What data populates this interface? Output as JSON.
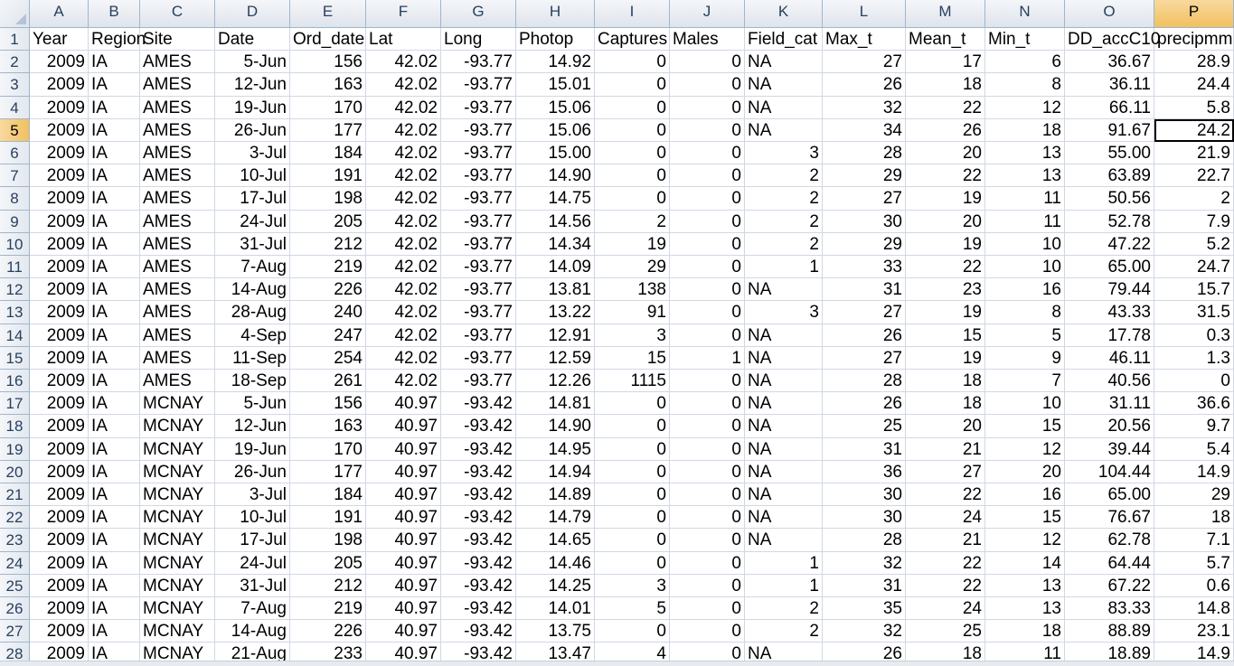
{
  "app": {
    "title": "Spreadsheet"
  },
  "selection": {
    "active_row": "5",
    "active_col": "P"
  },
  "columns": [
    "A",
    "B",
    "C",
    "D",
    "E",
    "F",
    "G",
    "H",
    "I",
    "J",
    "K",
    "L",
    "M",
    "N",
    "O",
    "P"
  ],
  "numeric_cols": [
    0,
    3,
    4,
    5,
    6,
    7,
    8,
    9,
    10,
    11,
    12,
    13,
    14,
    15
  ],
  "header_row": [
    "Year",
    "Region",
    "Site",
    "Date",
    "Ord_date",
    "Lat",
    "Long",
    "Photop",
    "Captures",
    "Males",
    "Field_cat",
    "Max_t",
    "Mean_t",
    "Min_t",
    "DD_accC10",
    "precipmm"
  ],
  "rows": [
    [
      "2009",
      "IA",
      "AMES",
      "5-Jun",
      "156",
      "42.02",
      "-93.77",
      "14.92",
      "0",
      "0",
      "NA",
      "27",
      "17",
      "6",
      "36.67",
      "28.9"
    ],
    [
      "2009",
      "IA",
      "AMES",
      "12-Jun",
      "163",
      "42.02",
      "-93.77",
      "15.01",
      "0",
      "0",
      "NA",
      "26",
      "18",
      "8",
      "36.11",
      "24.4"
    ],
    [
      "2009",
      "IA",
      "AMES",
      "19-Jun",
      "170",
      "42.02",
      "-93.77",
      "15.06",
      "0",
      "0",
      "NA",
      "32",
      "22",
      "12",
      "66.11",
      "5.8"
    ],
    [
      "2009",
      "IA",
      "AMES",
      "26-Jun",
      "177",
      "42.02",
      "-93.77",
      "15.06",
      "0",
      "0",
      "NA",
      "34",
      "26",
      "18",
      "91.67",
      "24.2"
    ],
    [
      "2009",
      "IA",
      "AMES",
      "3-Jul",
      "184",
      "42.02",
      "-93.77",
      "15.00",
      "0",
      "0",
      "3",
      "28",
      "20",
      "13",
      "55.00",
      "21.9"
    ],
    [
      "2009",
      "IA",
      "AMES",
      "10-Jul",
      "191",
      "42.02",
      "-93.77",
      "14.90",
      "0",
      "0",
      "2",
      "29",
      "22",
      "13",
      "63.89",
      "22.7"
    ],
    [
      "2009",
      "IA",
      "AMES",
      "17-Jul",
      "198",
      "42.02",
      "-93.77",
      "14.75",
      "0",
      "0",
      "2",
      "27",
      "19",
      "11",
      "50.56",
      "2"
    ],
    [
      "2009",
      "IA",
      "AMES",
      "24-Jul",
      "205",
      "42.02",
      "-93.77",
      "14.56",
      "2",
      "0",
      "2",
      "30",
      "20",
      "11",
      "52.78",
      "7.9"
    ],
    [
      "2009",
      "IA",
      "AMES",
      "31-Jul",
      "212",
      "42.02",
      "-93.77",
      "14.34",
      "19",
      "0",
      "2",
      "29",
      "19",
      "10",
      "47.22",
      "5.2"
    ],
    [
      "2009",
      "IA",
      "AMES",
      "7-Aug",
      "219",
      "42.02",
      "-93.77",
      "14.09",
      "29",
      "0",
      "1",
      "33",
      "22",
      "10",
      "65.00",
      "24.7"
    ],
    [
      "2009",
      "IA",
      "AMES",
      "14-Aug",
      "226",
      "42.02",
      "-93.77",
      "13.81",
      "138",
      "0",
      "NA",
      "31",
      "23",
      "16",
      "79.44",
      "15.7"
    ],
    [
      "2009",
      "IA",
      "AMES",
      "28-Aug",
      "240",
      "42.02",
      "-93.77",
      "13.22",
      "91",
      "0",
      "3",
      "27",
      "19",
      "8",
      "43.33",
      "31.5"
    ],
    [
      "2009",
      "IA",
      "AMES",
      "4-Sep",
      "247",
      "42.02",
      "-93.77",
      "12.91",
      "3",
      "0",
      "NA",
      "26",
      "15",
      "5",
      "17.78",
      "0.3"
    ],
    [
      "2009",
      "IA",
      "AMES",
      "11-Sep",
      "254",
      "42.02",
      "-93.77",
      "12.59",
      "15",
      "1",
      "NA",
      "27",
      "19",
      "9",
      "46.11",
      "1.3"
    ],
    [
      "2009",
      "IA",
      "AMES",
      "18-Sep",
      "261",
      "42.02",
      "-93.77",
      "12.26",
      "1115",
      "0",
      "NA",
      "28",
      "18",
      "7",
      "40.56",
      "0"
    ],
    [
      "2009",
      "IA",
      "MCNAY",
      "5-Jun",
      "156",
      "40.97",
      "-93.42",
      "14.81",
      "0",
      "0",
      "NA",
      "26",
      "18",
      "10",
      "31.11",
      "36.6"
    ],
    [
      "2009",
      "IA",
      "MCNAY",
      "12-Jun",
      "163",
      "40.97",
      "-93.42",
      "14.90",
      "0",
      "0",
      "NA",
      "25",
      "20",
      "15",
      "20.56",
      "9.7"
    ],
    [
      "2009",
      "IA",
      "MCNAY",
      "19-Jun",
      "170",
      "40.97",
      "-93.42",
      "14.95",
      "0",
      "0",
      "NA",
      "31",
      "21",
      "12",
      "39.44",
      "5.4"
    ],
    [
      "2009",
      "IA",
      "MCNAY",
      "26-Jun",
      "177",
      "40.97",
      "-93.42",
      "14.94",
      "0",
      "0",
      "NA",
      "36",
      "27",
      "20",
      "104.44",
      "14.9"
    ],
    [
      "2009",
      "IA",
      "MCNAY",
      "3-Jul",
      "184",
      "40.97",
      "-93.42",
      "14.89",
      "0",
      "0",
      "NA",
      "30",
      "22",
      "16",
      "65.00",
      "29"
    ],
    [
      "2009",
      "IA",
      "MCNAY",
      "10-Jul",
      "191",
      "40.97",
      "-93.42",
      "14.79",
      "0",
      "0",
      "NA",
      "30",
      "24",
      "15",
      "76.67",
      "18"
    ],
    [
      "2009",
      "IA",
      "MCNAY",
      "17-Jul",
      "198",
      "40.97",
      "-93.42",
      "14.65",
      "0",
      "0",
      "NA",
      "28",
      "21",
      "12",
      "62.78",
      "7.1"
    ],
    [
      "2009",
      "IA",
      "MCNAY",
      "24-Jul",
      "205",
      "40.97",
      "-93.42",
      "14.46",
      "0",
      "0",
      "1",
      "32",
      "22",
      "14",
      "64.44",
      "5.7"
    ],
    [
      "2009",
      "IA",
      "MCNAY",
      "31-Jul",
      "212",
      "40.97",
      "-93.42",
      "14.25",
      "3",
      "0",
      "1",
      "31",
      "22",
      "13",
      "67.22",
      "0.6"
    ],
    [
      "2009",
      "IA",
      "MCNAY",
      "7-Aug",
      "219",
      "40.97",
      "-93.42",
      "14.01",
      "5",
      "0",
      "2",
      "35",
      "24",
      "13",
      "83.33",
      "14.8"
    ],
    [
      "2009",
      "IA",
      "MCNAY",
      "14-Aug",
      "226",
      "40.97",
      "-93.42",
      "13.75",
      "0",
      "0",
      "2",
      "32",
      "25",
      "18",
      "88.89",
      "23.1"
    ],
    [
      "2009",
      "IA",
      "MCNAY",
      "21-Aug",
      "233",
      "40.97",
      "-93.42",
      "13.47",
      "4",
      "0",
      "NA",
      "26",
      "18",
      "11",
      "18.89",
      "14.9"
    ]
  ]
}
